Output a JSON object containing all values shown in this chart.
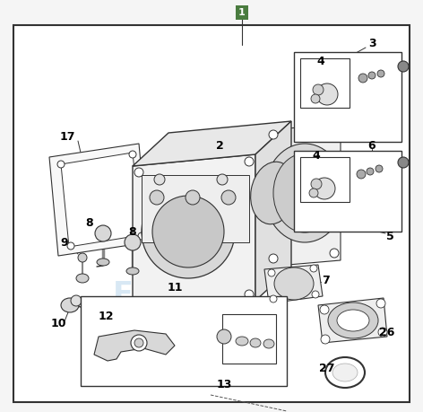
{
  "bg_color": "#f5f5f5",
  "border_color": "#222222",
  "fig_width": 4.72,
  "fig_height": 4.59,
  "dpi": 100,
  "watermark_color": "#c8dff0",
  "line_color": "#333333",
  "part_fill": "#ffffff",
  "part_edge": "#333333",
  "shadow_fill": "#e0e0e0"
}
